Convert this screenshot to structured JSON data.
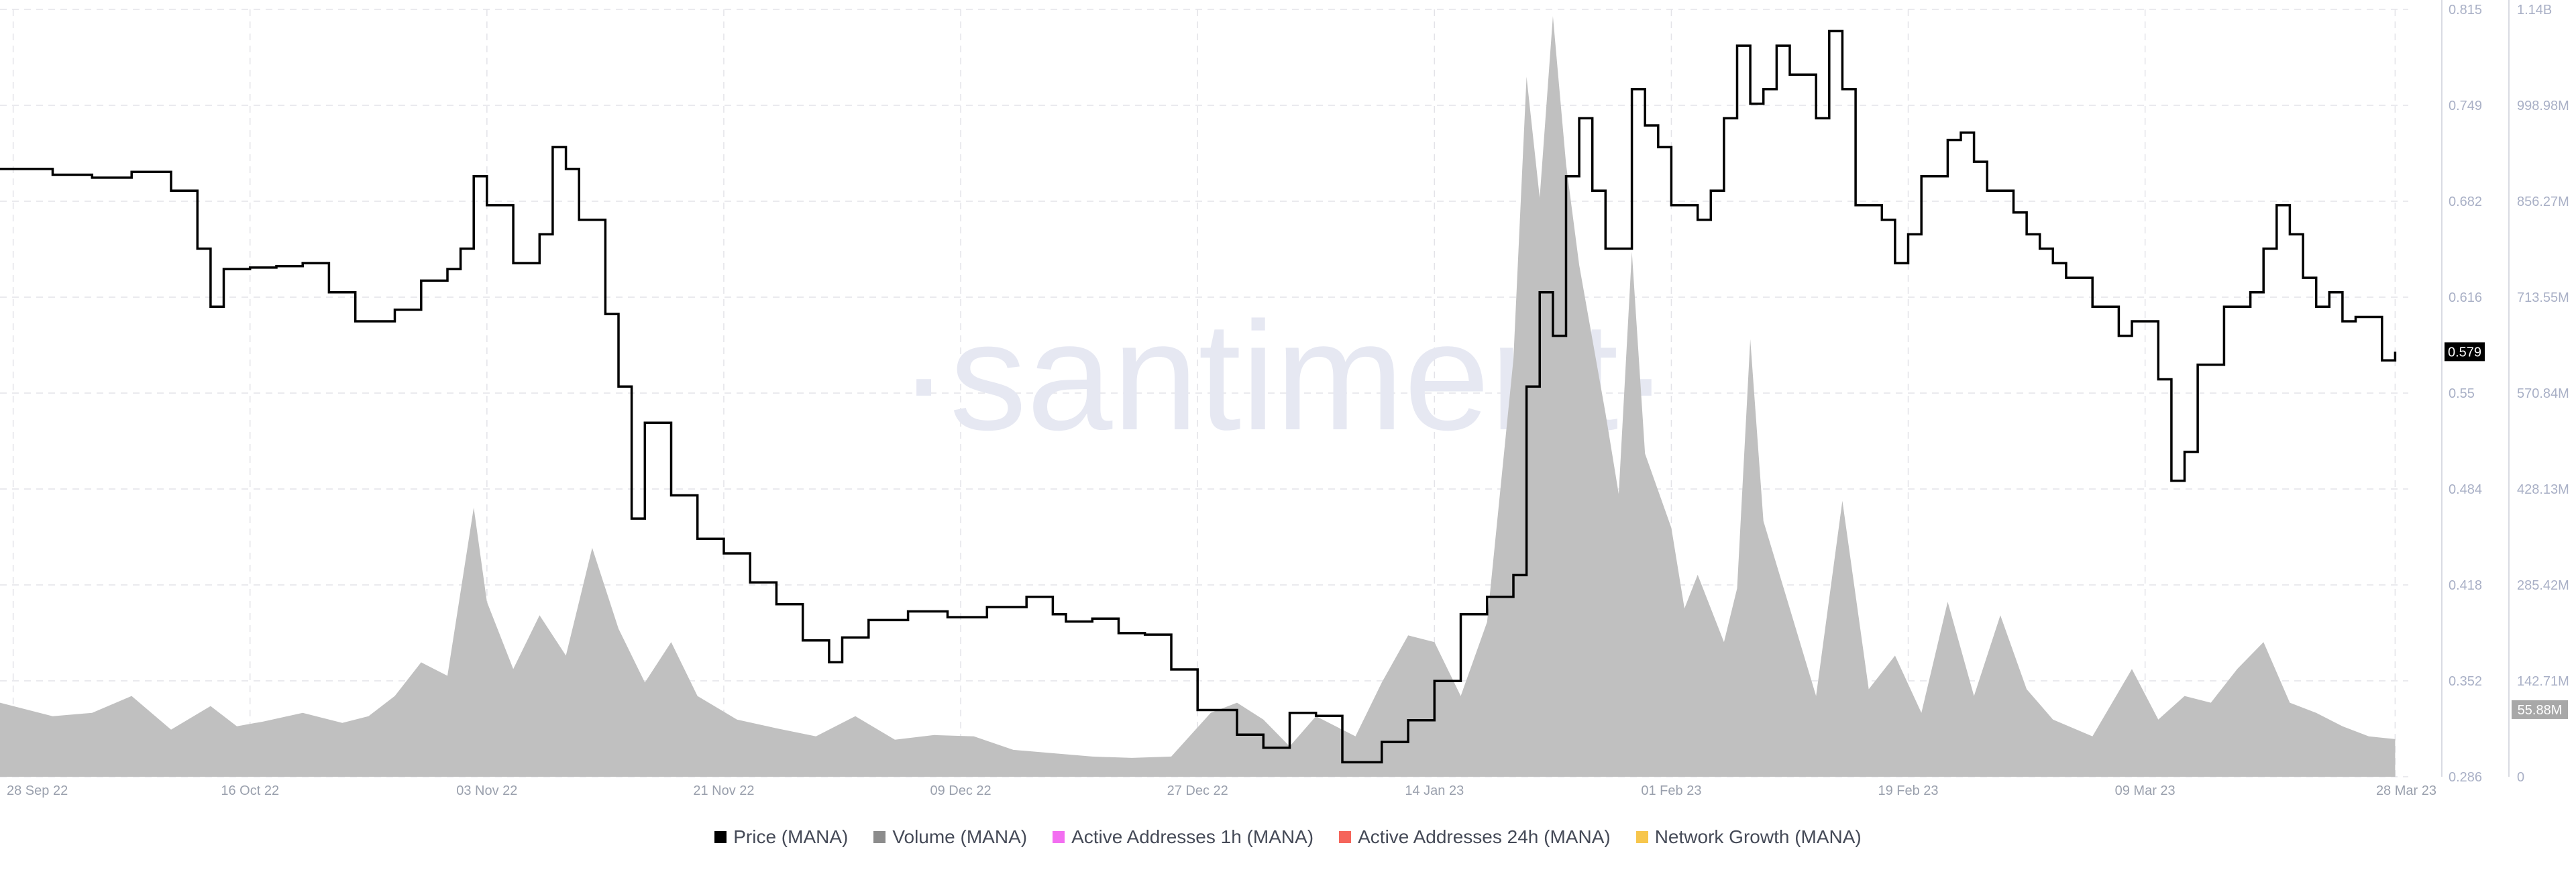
{
  "chart_data": {
    "type": "line",
    "watermark": "·santiment·",
    "x_ticks": [
      "28 Sep 22",
      "16 Oct 22",
      "03 Nov 22",
      "21 Nov 22",
      "09 Dec 22",
      "27 Dec 22",
      "14 Jan 23",
      "01 Feb 23",
      "19 Feb 23",
      "09 Mar 23",
      "28 Mar 23"
    ],
    "price_axis": {
      "ticks": [
        "0.815",
        "0.749",
        "0.682",
        "0.616",
        "0.55",
        "0.484",
        "0.418",
        "0.352",
        "0.286"
      ],
      "range": [
        0.286,
        0.815
      ]
    },
    "volume_axis": {
      "ticks": [
        "1.14B",
        "998.98M",
        "856.27M",
        "713.55M",
        "570.84M",
        "428.13M",
        "285.42M",
        "142.71M",
        "0"
      ],
      "range": [
        0,
        1140000000
      ]
    },
    "last_price_label": "0.579",
    "last_volume_label": "55.88M",
    "series": [
      {
        "name": "Price (MANA)",
        "color": "#000000",
        "axis": "price",
        "points": [
          [
            "2022-09-27",
            0.705
          ],
          [
            "2022-10-01",
            0.701
          ],
          [
            "2022-10-04",
            0.699
          ],
          [
            "2022-10-07",
            0.703
          ],
          [
            "2022-10-10",
            0.69
          ],
          [
            "2022-10-12",
            0.65
          ],
          [
            "2022-10-13",
            0.61
          ],
          [
            "2022-10-14",
            0.636
          ],
          [
            "2022-10-16",
            0.637
          ],
          [
            "2022-10-18",
            0.638
          ],
          [
            "2022-10-20",
            0.64
          ],
          [
            "2022-10-22",
            0.62
          ],
          [
            "2022-10-24",
            0.6
          ],
          [
            "2022-10-27",
            0.608
          ],
          [
            "2022-10-29",
            0.628
          ],
          [
            "2022-10-31",
            0.636
          ],
          [
            "2022-11-01",
            0.65
          ],
          [
            "2022-11-02",
            0.7
          ],
          [
            "2022-11-03",
            0.68
          ],
          [
            "2022-11-05",
            0.64
          ],
          [
            "2022-11-07",
            0.66
          ],
          [
            "2022-11-08",
            0.72
          ],
          [
            "2022-11-09",
            0.705
          ],
          [
            "2022-11-10",
            0.67
          ],
          [
            "2022-11-12",
            0.605
          ],
          [
            "2022-11-13",
            0.555
          ],
          [
            "2022-11-14",
            0.464
          ],
          [
            "2022-11-15",
            0.53
          ],
          [
            "2022-11-17",
            0.48
          ],
          [
            "2022-11-19",
            0.45
          ],
          [
            "2022-11-21",
            0.44
          ],
          [
            "2022-11-23",
            0.42
          ],
          [
            "2022-11-25",
            0.405
          ],
          [
            "2022-11-27",
            0.38
          ],
          [
            "2022-11-29",
            0.365
          ],
          [
            "2022-11-30",
            0.382
          ],
          [
            "2022-12-02",
            0.394
          ],
          [
            "2022-12-05",
            0.4
          ],
          [
            "2022-12-08",
            0.396
          ],
          [
            "2022-12-11",
            0.403
          ],
          [
            "2022-12-14",
            0.41
          ],
          [
            "2022-12-16",
            0.398
          ],
          [
            "2022-12-17",
            0.393
          ],
          [
            "2022-12-19",
            0.395
          ],
          [
            "2022-12-21",
            0.385
          ],
          [
            "2022-12-23",
            0.384
          ],
          [
            "2022-12-25",
            0.36
          ],
          [
            "2022-12-27",
            0.332
          ],
          [
            "2022-12-30",
            0.315
          ],
          [
            "2023-01-01",
            0.306
          ],
          [
            "2023-01-03",
            0.33
          ],
          [
            "2023-01-05",
            0.328
          ],
          [
            "2023-01-07",
            0.296
          ],
          [
            "2023-01-10",
            0.31
          ],
          [
            "2023-01-12",
            0.325
          ],
          [
            "2023-01-14",
            0.352
          ],
          [
            "2023-01-16",
            0.398
          ],
          [
            "2023-01-18",
            0.41
          ],
          [
            "2023-01-20",
            0.425
          ],
          [
            "2023-01-21",
            0.555
          ],
          [
            "2023-01-22",
            0.62
          ],
          [
            "2023-01-23",
            0.59
          ],
          [
            "2023-01-24",
            0.7
          ],
          [
            "2023-01-25",
            0.74
          ],
          [
            "2023-01-26",
            0.69
          ],
          [
            "2023-01-27",
            0.65
          ],
          [
            "2023-01-29",
            0.76
          ],
          [
            "2023-01-30",
            0.735
          ],
          [
            "2023-01-31",
            0.72
          ],
          [
            "2023-02-01",
            0.68
          ],
          [
            "2023-02-03",
            0.67
          ],
          [
            "2023-02-04",
            0.69
          ],
          [
            "2023-02-05",
            0.74
          ],
          [
            "2023-02-06",
            0.79
          ],
          [
            "2023-02-07",
            0.75
          ],
          [
            "2023-02-08",
            0.76
          ],
          [
            "2023-02-09",
            0.79
          ],
          [
            "2023-02-10",
            0.77
          ],
          [
            "2023-02-12",
            0.74
          ],
          [
            "2023-02-13",
            0.8
          ],
          [
            "2023-02-14",
            0.76
          ],
          [
            "2023-02-15",
            0.68
          ],
          [
            "2023-02-17",
            0.67
          ],
          [
            "2023-02-18",
            0.64
          ],
          [
            "2023-02-19",
            0.66
          ],
          [
            "2023-02-20",
            0.7
          ],
          [
            "2023-02-22",
            0.725
          ],
          [
            "2023-02-23",
            0.73
          ],
          [
            "2023-02-24",
            0.71
          ],
          [
            "2023-02-25",
            0.69
          ],
          [
            "2023-02-27",
            0.675
          ],
          [
            "2023-02-28",
            0.66
          ],
          [
            "2023-03-01",
            0.65
          ],
          [
            "2023-03-02",
            0.64
          ],
          [
            "2023-03-03",
            0.63
          ],
          [
            "2023-03-05",
            0.61
          ],
          [
            "2023-03-07",
            0.59
          ],
          [
            "2023-03-08",
            0.6
          ],
          [
            "2023-03-10",
            0.56
          ],
          [
            "2023-03-11",
            0.49
          ],
          [
            "2023-03-12",
            0.51
          ],
          [
            "2023-03-13",
            0.57
          ],
          [
            "2023-03-15",
            0.61
          ],
          [
            "2023-03-17",
            0.62
          ],
          [
            "2023-03-18",
            0.65
          ],
          [
            "2023-03-19",
            0.68
          ],
          [
            "2023-03-20",
            0.66
          ],
          [
            "2023-03-21",
            0.63
          ],
          [
            "2023-03-22",
            0.61
          ],
          [
            "2023-03-23",
            0.62
          ],
          [
            "2023-03-24",
            0.6
          ],
          [
            "2023-03-25",
            0.603
          ],
          [
            "2023-03-27",
            0.573
          ],
          [
            "2023-03-28",
            0.579
          ]
        ]
      },
      {
        "name": "Volume (MANA)",
        "color": "#c0c0c0",
        "axis": "volume",
        "points": [
          [
            "2022-09-27",
            110000000
          ],
          [
            "2022-10-01",
            90000000
          ],
          [
            "2022-10-04",
            95000000
          ],
          [
            "2022-10-07",
            120000000
          ],
          [
            "2022-10-10",
            70000000
          ],
          [
            "2022-10-13",
            105000000
          ],
          [
            "2022-10-15",
            75000000
          ],
          [
            "2022-10-17",
            82000000
          ],
          [
            "2022-10-20",
            95000000
          ],
          [
            "2022-10-23",
            80000000
          ],
          [
            "2022-10-25",
            90000000
          ],
          [
            "2022-10-27",
            120000000
          ],
          [
            "2022-10-29",
            170000000
          ],
          [
            "2022-10-31",
            150000000
          ],
          [
            "2022-11-02",
            400000000
          ],
          [
            "2022-11-03",
            260000000
          ],
          [
            "2022-11-05",
            160000000
          ],
          [
            "2022-11-07",
            240000000
          ],
          [
            "2022-11-09",
            180000000
          ],
          [
            "2022-11-11",
            340000000
          ],
          [
            "2022-11-13",
            220000000
          ],
          [
            "2022-11-15",
            140000000
          ],
          [
            "2022-11-17",
            200000000
          ],
          [
            "2022-11-19",
            120000000
          ],
          [
            "2022-11-22",
            85000000
          ],
          [
            "2022-11-25",
            72000000
          ],
          [
            "2022-11-28",
            60000000
          ],
          [
            "2022-12-01",
            90000000
          ],
          [
            "2022-12-04",
            55000000
          ],
          [
            "2022-12-07",
            62000000
          ],
          [
            "2022-12-10",
            60000000
          ],
          [
            "2022-12-13",
            40000000
          ],
          [
            "2022-12-16",
            35000000
          ],
          [
            "2022-12-19",
            30000000
          ],
          [
            "2022-12-22",
            28000000
          ],
          [
            "2022-12-25",
            30000000
          ],
          [
            "2022-12-28",
            95000000
          ],
          [
            "2022-12-30",
            110000000
          ],
          [
            "2023-01-01",
            85000000
          ],
          [
            "2023-01-03",
            45000000
          ],
          [
            "2023-01-05",
            90000000
          ],
          [
            "2023-01-08",
            60000000
          ],
          [
            "2023-01-10",
            140000000
          ],
          [
            "2023-01-12",
            210000000
          ],
          [
            "2023-01-14",
            200000000
          ],
          [
            "2023-01-16",
            120000000
          ],
          [
            "2023-01-18",
            230000000
          ],
          [
            "2023-01-20",
            620000000
          ],
          [
            "2023-01-21",
            1040000000
          ],
          [
            "2023-01-22",
            860000000
          ],
          [
            "2023-01-23",
            1130000000
          ],
          [
            "2023-01-24",
            910000000
          ],
          [
            "2023-01-25",
            760000000
          ],
          [
            "2023-01-27",
            540000000
          ],
          [
            "2023-01-28",
            420000000
          ],
          [
            "2023-01-29",
            780000000
          ],
          [
            "2023-01-30",
            480000000
          ],
          [
            "2023-02-01",
            370000000
          ],
          [
            "2023-02-02",
            250000000
          ],
          [
            "2023-02-03",
            300000000
          ],
          [
            "2023-02-05",
            200000000
          ],
          [
            "2023-02-06",
            280000000
          ],
          [
            "2023-02-07",
            650000000
          ],
          [
            "2023-02-08",
            380000000
          ],
          [
            "2023-02-10",
            250000000
          ],
          [
            "2023-02-12",
            120000000
          ],
          [
            "2023-02-14",
            410000000
          ],
          [
            "2023-02-16",
            130000000
          ],
          [
            "2023-02-18",
            180000000
          ],
          [
            "2023-02-20",
            95000000
          ],
          [
            "2023-02-22",
            260000000
          ],
          [
            "2023-02-24",
            120000000
          ],
          [
            "2023-02-26",
            240000000
          ],
          [
            "2023-02-28",
            130000000
          ],
          [
            "2023-03-02",
            85000000
          ],
          [
            "2023-03-05",
            60000000
          ],
          [
            "2023-03-08",
            160000000
          ],
          [
            "2023-03-10",
            85000000
          ],
          [
            "2023-03-12",
            120000000
          ],
          [
            "2023-03-14",
            110000000
          ],
          [
            "2023-03-16",
            160000000
          ],
          [
            "2023-03-18",
            200000000
          ],
          [
            "2023-03-20",
            110000000
          ],
          [
            "2023-03-22",
            95000000
          ],
          [
            "2023-03-24",
            75000000
          ],
          [
            "2023-03-26",
            60000000
          ],
          [
            "2023-03-28",
            55880000
          ]
        ]
      },
      {
        "name": "Active Addresses 1h (MANA)",
        "color": "#f36ef1",
        "axis": "none",
        "points": []
      },
      {
        "name": "Active Addresses 24h (MANA)",
        "color": "#f5655b",
        "axis": "none",
        "points": []
      },
      {
        "name": "Network Growth (MANA)",
        "color": "#f7c64c",
        "axis": "none",
        "points": []
      }
    ],
    "grid": true,
    "legend_position": "bottom"
  }
}
